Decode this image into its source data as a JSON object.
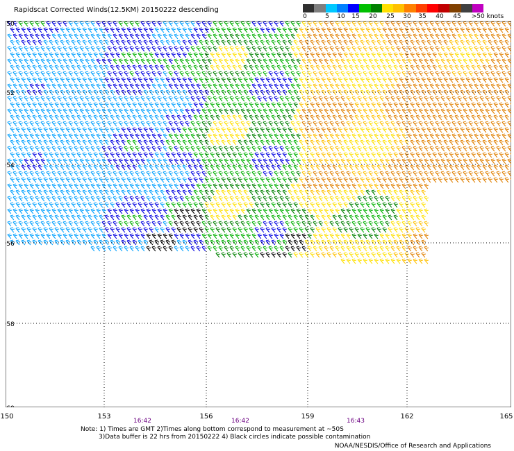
{
  "title": "Rapidscat Corrected Winds(12.5KM) 20150222 descending",
  "legend": {
    "colors": [
      "#303030",
      "#7f7f7f",
      "#00c8ff",
      "#0080ff",
      "#0000ff",
      "#00c000",
      "#008000",
      "#ffe000",
      "#ffc000",
      "#ff8000",
      "#ff4000",
      "#ff0000",
      "#c00000",
      "#804000",
      "#404040",
      "#c000c0"
    ],
    "labels": [
      "0",
      "5",
      "10",
      "15",
      "20",
      "25",
      "30",
      "35",
      "40",
      "45",
      ">50 knots"
    ]
  },
  "map": {
    "lat_labels": [
      "-50",
      "-52",
      "-54",
      "-56",
      "-58",
      "-60"
    ],
    "lon_labels": [
      "150",
      "153",
      "156",
      "159",
      "162",
      "165"
    ],
    "times": [
      "16:42",
      "16:42",
      "16:43"
    ]
  },
  "notes": {
    "line1": "Note: 1) Times are GMT 2)Times along bottom correspond to measurement at ~50S",
    "line2": "3)Data buffer is 22 hrs from 20150222 4) Black circles indicate possible contamination"
  },
  "credit": "NOAA/NESDIS/Office of Research and Applications"
}
